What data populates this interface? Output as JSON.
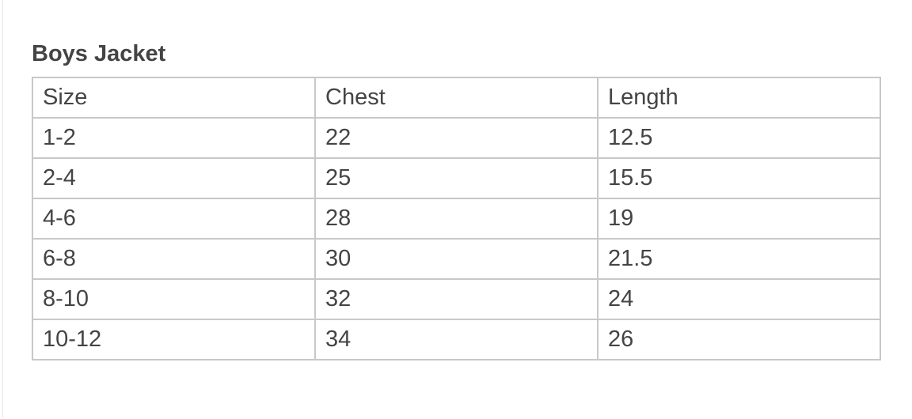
{
  "title": "Boys Jacket",
  "table": {
    "headers": [
      "Size",
      "Chest",
      "Length"
    ],
    "rows": [
      [
        "1-2",
        "22",
        "12.5"
      ],
      [
        "2-4",
        "25",
        "15.5"
      ],
      [
        "4-6",
        "28",
        "19"
      ],
      [
        "6-8",
        "30",
        "21.5"
      ],
      [
        "8-10",
        "32",
        "24"
      ],
      [
        "10-12",
        "34",
        "26"
      ]
    ]
  }
}
